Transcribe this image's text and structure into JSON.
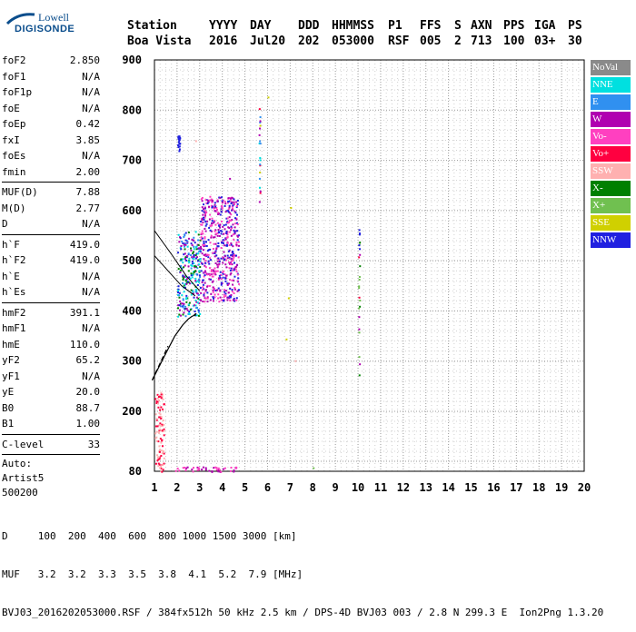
{
  "logo": {
    "line1": "Lowell",
    "line2": "DIGISONDE"
  },
  "header": {
    "line1": [
      "Station",
      "YYYY",
      "DAY",
      "DDD",
      "HHMMSS",
      "P1",
      "FFS",
      "S",
      "AXN",
      "PPS",
      "IGA",
      "PS"
    ],
    "line2": [
      "Boa Vista",
      "2016",
      "Jul20",
      "202",
      "053000",
      "RSF",
      "005",
      "2",
      "713",
      "100",
      "03+",
      "30"
    ]
  },
  "params": {
    "group1": [
      {
        "k": "foF2",
        "v": "2.850"
      },
      {
        "k": "foF1",
        "v": "N/A"
      },
      {
        "k": "foF1p",
        "v": "N/A"
      },
      {
        "k": "foE",
        "v": "N/A"
      },
      {
        "k": "foEp",
        "v": "0.42"
      },
      {
        "k": "fxI",
        "v": "3.85"
      },
      {
        "k": "foEs",
        "v": "N/A"
      },
      {
        "k": "fmin",
        "v": "2.00"
      }
    ],
    "group2": [
      {
        "k": "MUF(D)",
        "v": "7.88"
      },
      {
        "k": "M(D)",
        "v": "2.77"
      },
      {
        "k": "D",
        "v": "N/A"
      }
    ],
    "group3": [
      {
        "k": "h`F",
        "v": "419.0"
      },
      {
        "k": "h`F2",
        "v": "419.0"
      },
      {
        "k": "h`E",
        "v": "N/A"
      },
      {
        "k": "h`Es",
        "v": "N/A"
      }
    ],
    "group4": [
      {
        "k": "hmF2",
        "v": "391.1"
      },
      {
        "k": "hmF1",
        "v": "N/A"
      },
      {
        "k": "hmE",
        "v": "110.0"
      },
      {
        "k": "yF2",
        "v": "65.2"
      },
      {
        "k": "yF1",
        "v": "N/A"
      },
      {
        "k": "yE",
        "v": "20.0"
      },
      {
        "k": "B0",
        "v": "88.7"
      },
      {
        "k": "B1",
        "v": "1.00"
      }
    ],
    "group5": [
      {
        "k": "C-level",
        "v": "33"
      }
    ],
    "auto": [
      "Auto:",
      "Artist5",
      "500200"
    ]
  },
  "legend": [
    {
      "label": "NoVal",
      "color": "#8a8a8a"
    },
    {
      "label": "NNE",
      "color": "#00e0e0"
    },
    {
      "label": "E",
      "color": "#3090f0"
    },
    {
      "label": "W",
      "color": "#b000b0"
    },
    {
      "label": "Vo-",
      "color": "#ff40c0"
    },
    {
      "label": "Vo+",
      "color": "#ff0040"
    },
    {
      "label": "SSW",
      "color": "#ffb0b0"
    },
    {
      "label": "X-",
      "color": "#008000"
    },
    {
      "label": "X+",
      "color": "#70c050"
    },
    {
      "label": "SSE",
      "color": "#d0d000"
    },
    {
      "label": "NNW",
      "color": "#2020e0"
    }
  ],
  "footer": {
    "line1": "D     100  200  400  600  800 1000 1500 3000 [km]",
    "line2": "MUF   3.2  3.2  3.3  3.5  3.8  4.1  5.2  7.9 [MHz]",
    "line3": "BVJ03_2016202053000.RSF / 384fx512h 50 kHz 2.5 km / DPS-4D BVJ03 003 / 2.8 N 299.3 E  Ion2Png 1.3.20"
  },
  "chart_data": {
    "type": "scatter",
    "x": [],
    "y": [],
    "xlim": [
      1,
      20
    ],
    "ylim": [
      80,
      900
    ],
    "xticks": [
      1,
      2,
      3,
      4,
      5,
      6,
      7,
      8,
      9,
      10,
      11,
      12,
      13,
      14,
      15,
      16,
      17,
      18,
      19,
      20
    ],
    "yticks": [
      80,
      200,
      300,
      400,
      500,
      600,
      700,
      800,
      900
    ],
    "xlabel": "",
    "ylabel": "",
    "grid": true,
    "echo_regions": [
      {
        "f": [
          2.0,
          3.0
        ],
        "h": [
          390,
          560
        ],
        "colors": [
          "W",
          "NNW",
          "NNE",
          "E",
          "X-"
        ]
      },
      {
        "f": [
          3.0,
          4.7
        ],
        "h": [
          420,
          630
        ],
        "colors": [
          "W",
          "NNW",
          "Vo-"
        ]
      },
      {
        "f": [
          2.0,
          2.1
        ],
        "h": [
          720,
          750
        ],
        "colors": [
          "NNW"
        ]
      },
      {
        "f": [
          5.6,
          5.65
        ],
        "h": [
          600,
          810
        ],
        "colors": [
          "E",
          "NNE",
          "Vo+",
          "W",
          "SSE"
        ]
      },
      {
        "f": [
          10.0,
          10.05
        ],
        "h": [
          250,
          570
        ],
        "colors": [
          "X-",
          "X+",
          "W",
          "Vo+",
          "NNW"
        ]
      },
      {
        "f": [
          1.9,
          4.7
        ],
        "h": [
          80,
          90
        ],
        "colors": [
          "W",
          "Vo-"
        ]
      },
      {
        "f": [
          1.0,
          1.4
        ],
        "h": [
          80,
          240
        ],
        "colors": [
          "SSW",
          "Vo+"
        ]
      }
    ],
    "scaled_points": [
      {
        "f": 6.0,
        "h": 827,
        "c": "SSE"
      },
      {
        "f": 7.0,
        "h": 607,
        "c": "SSE"
      },
      {
        "f": 6.9,
        "h": 427,
        "c": "SSE"
      },
      {
        "f": 6.8,
        "h": 345,
        "c": "SSE"
      },
      {
        "f": 7.2,
        "h": 302,
        "c": "SSW"
      },
      {
        "f": 8.0,
        "h": 88,
        "c": "X+"
      },
      {
        "f": 2.8,
        "h": 740,
        "c": "SSW"
      },
      {
        "f": 4.3,
        "h": 665,
        "c": "W"
      }
    ],
    "profile": {
      "f": [
        0.9,
        1.5,
        1.9,
        2.25,
        2.5,
        2.65,
        2.75,
        2.85
      ],
      "h": [
        262,
        315,
        350,
        372,
        384,
        389,
        391,
        395
      ]
    },
    "trace_lines": [
      {
        "f": [
          1.0,
          1.8,
          2.4,
          3.0
        ],
        "h": [
          560,
          510,
          470,
          440
        ]
      },
      {
        "f": [
          1.0,
          1.6,
          2.2,
          2.8
        ],
        "h": [
          510,
          480,
          450,
          430
        ]
      }
    ]
  }
}
